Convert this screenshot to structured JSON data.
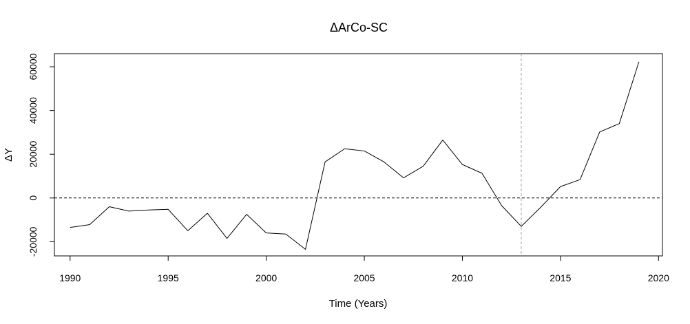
{
  "chart_data": {
    "type": "line",
    "title": "ΔArCo-SC",
    "xlabel": "Time (Years)",
    "ylabel": "ΔY",
    "xlim": [
      1989.2,
      2020.2
    ],
    "ylim": [
      -26500,
      66000
    ],
    "x_ticks": [
      1990,
      1995,
      2000,
      2005,
      2010,
      2015,
      2020
    ],
    "y_ticks": [
      -20000,
      0,
      20000,
      40000,
      60000
    ],
    "x_tick_labels": [
      "1990",
      "1995",
      "2000",
      "2005",
      "2010",
      "2015",
      "2020"
    ],
    "y_tick_labels": [
      "-20000",
      "0",
      "20000",
      "40000",
      "60000"
    ],
    "grid": false,
    "reference_lines": {
      "horizontal_zero": {
        "y": 0,
        "style": "dashed",
        "color": "#000000"
      },
      "vertical_intervention": {
        "x": 2013,
        "style": "dashed",
        "color": "#9e9e9e"
      }
    },
    "series": [
      {
        "color": "#000000",
        "x": [
          1990,
          1991,
          1992,
          1993,
          1994,
          1995,
          1996,
          1997,
          1998,
          1999,
          2000,
          2001,
          2002,
          2003,
          2004,
          2005,
          2006,
          2007,
          2008,
          2009,
          2010,
          2011,
          2012,
          2013,
          2014,
          2015,
          2016,
          2017,
          2018,
          2019
        ],
        "values": [
          -13500,
          -12200,
          -4000,
          -6000,
          -5500,
          -5200,
          -15000,
          -7000,
          -18500,
          -7500,
          -16000,
          -16500,
          -23500,
          16500,
          22500,
          21500,
          16500,
          9200,
          14500,
          26500,
          15300,
          11300,
          -3500,
          -13000,
          -4200,
          5200,
          8400,
          30200,
          34000,
          62300
        ]
      }
    ]
  }
}
